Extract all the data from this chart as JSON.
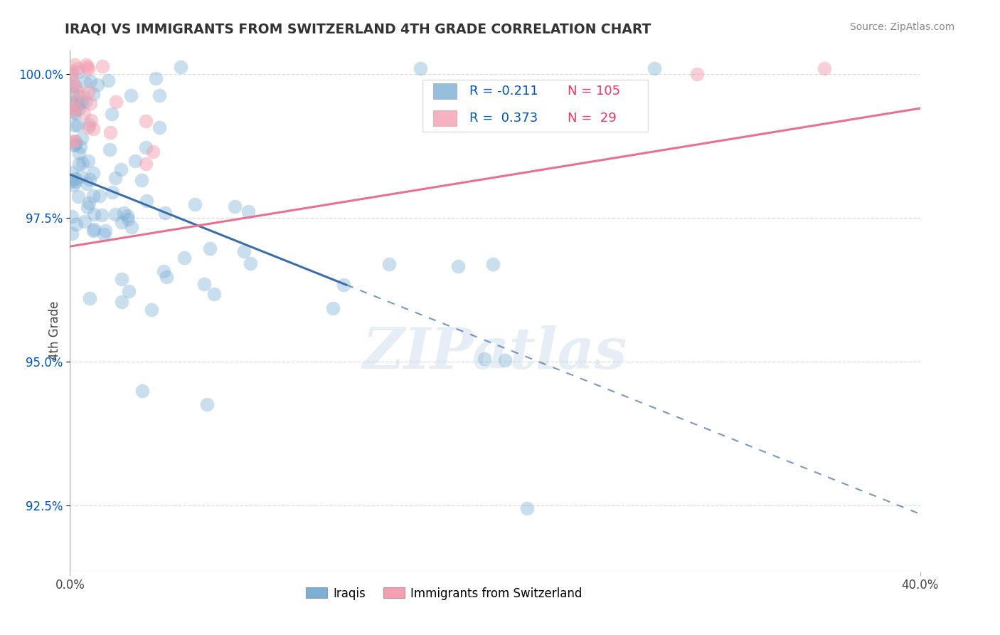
{
  "title": "IRAQI VS IMMIGRANTS FROM SWITZERLAND 4TH GRADE CORRELATION CHART",
  "source_text": "Source: ZipAtlas.com",
  "ylabel_text": "4th Grade",
  "xlim": [
    0.0,
    0.4
  ],
  "ylim": [
    0.9135,
    1.004
  ],
  "xtick_labels": [
    "0.0%",
    "40.0%"
  ],
  "xtick_positions": [
    0.0,
    0.4
  ],
  "ytick_labels": [
    "92.5%",
    "95.0%",
    "97.5%",
    "100.0%"
  ],
  "ytick_positions": [
    0.925,
    0.95,
    0.975,
    1.0
  ],
  "iraqis_color": "#7BAFD4",
  "swiss_color": "#F4A0B0",
  "iraqis_line_color": "#3A6EA8",
  "swiss_line_color": "#E87090",
  "R_iraqis": -0.211,
  "N_iraqis": 105,
  "R_swiss": 0.373,
  "N_swiss": 29,
  "iraqis_label": "Iraqis",
  "swiss_label": "Immigrants from Switzerland",
  "legend_R_color": "#0055BB",
  "legend_N_color": "#EE3366",
  "watermark": "ZIPatlas",
  "blue_line_solid_end_x": 0.13,
  "blue_line_y_at_0": 0.9825,
  "blue_line_y_at_04": 0.9235,
  "pink_line_y_at_0": 0.97,
  "pink_line_y_at_04": 0.994,
  "grid_color": "#CCCCCC",
  "grid_alpha": 0.7,
  "spine_color": "#CCCCCC"
}
